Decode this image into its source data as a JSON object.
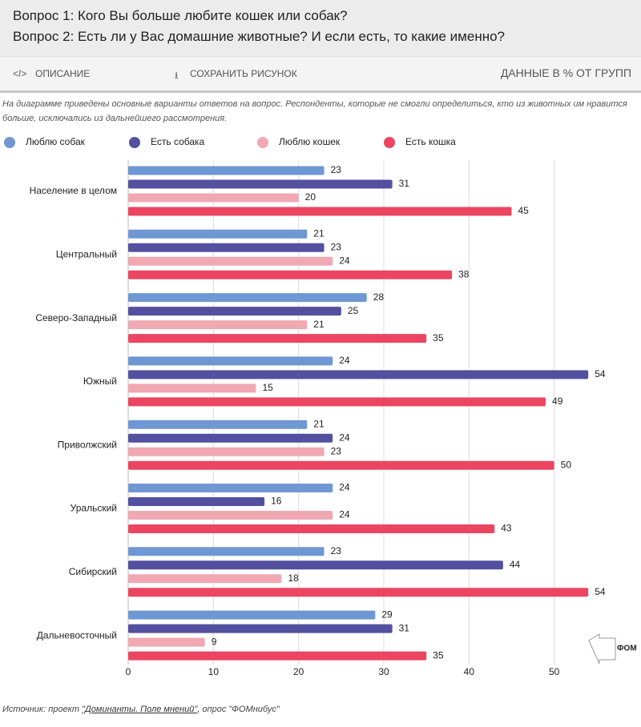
{
  "header": {
    "title_1": "Вопрос 1: Кого Вы больше любите  кошек или собак?",
    "title_2": "Вопрос 2: Есть ли у Вас домашние животные? И если есть, то какие именно?"
  },
  "toolbar": {
    "description": "ОПИСАНИЕ",
    "save": "СОХРАНИТЬ РИСУНОК",
    "units": "ДАННЫЕ В % ОТ ГРУПП"
  },
  "note": "На диаграмме приведены основные варианты ответов на вопрос. Респонденты, которые не смогли определиться, кто из животных им нравится больше, исключались из дальнейшего рассмотрения.",
  "source": {
    "prefix": "Источник: проект ",
    "link": "\"Доминанты. Поле мнений\"",
    "suffix": ", опрос \"ФОМнибус\""
  },
  "logo": "ФОМ",
  "chart_data": {
    "type": "hbar",
    "categories": [
      "Население в целом",
      "Центральный",
      "Северо-Западный",
      "Южный",
      "Приволжский",
      "Уральский",
      "Сибирский",
      "Дальневосточный"
    ],
    "series": [
      {
        "name": "Люблю собак",
        "color": "#6e97d3",
        "values": [
          23,
          21,
          28,
          24,
          21,
          24,
          23,
          29
        ]
      },
      {
        "name": "Есть собака",
        "color": "#5350a0",
        "values": [
          31,
          23,
          25,
          54,
          24,
          16,
          44,
          31
        ]
      },
      {
        "name": "Люблю кошек",
        "color": "#f0a8b3",
        "values": [
          20,
          24,
          21,
          15,
          23,
          24,
          18,
          9
        ]
      },
      {
        "name": "Есть кошка",
        "color": "#eb4561",
        "values": [
          45,
          38,
          35,
          49,
          50,
          43,
          54,
          35
        ]
      }
    ],
    "xlim": [
      0,
      60
    ],
    "xticks": [
      0,
      10,
      20,
      30,
      40,
      50
    ],
    "grid": true
  }
}
